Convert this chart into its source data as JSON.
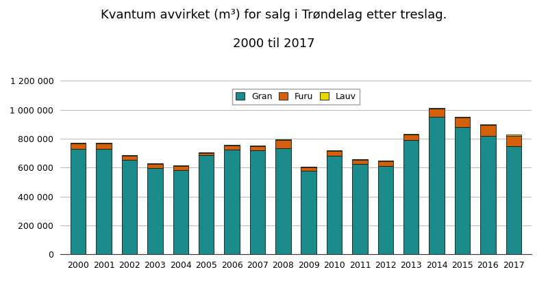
{
  "title_line1": "Kvantum avvirket (m³) for salg i Trøndelag etter treslag.",
  "title_line2": "2000 til 2017",
  "years": [
    2000,
    2001,
    2002,
    2003,
    2004,
    2005,
    2006,
    2007,
    2008,
    2009,
    2010,
    2011,
    2012,
    2013,
    2014,
    2015,
    2016,
    2017
  ],
  "gran": [
    730000,
    730000,
    655000,
    595000,
    585000,
    685000,
    725000,
    720000,
    735000,
    580000,
    680000,
    625000,
    610000,
    790000,
    950000,
    880000,
    820000,
    750000
  ],
  "furu": [
    35000,
    35000,
    25000,
    30000,
    25000,
    15000,
    30000,
    30000,
    55000,
    20000,
    35000,
    30000,
    35000,
    40000,
    60000,
    65000,
    75000,
    70000
  ],
  "lauv": [
    5000,
    5000,
    5000,
    5000,
    5000,
    5000,
    5000,
    5000,
    5000,
    5000,
    5000,
    5000,
    5000,
    5000,
    5000,
    5000,
    5000,
    10000
  ],
  "gran_color": "#1a8a8a",
  "furu_color": "#d45f0a",
  "lauv_color": "#e8d800",
  "background_color": "#ffffff",
  "ylim": [
    0,
    1200000
  ],
  "yticks": [
    0,
    200000,
    400000,
    600000,
    800000,
    1000000,
    1200000
  ],
  "title_fontsize": 14,
  "legend_labels": [
    "Gran",
    "Furu",
    "Lauv"
  ],
  "bar_edgecolor": "#111111",
  "bar_linewidth": 0.6
}
